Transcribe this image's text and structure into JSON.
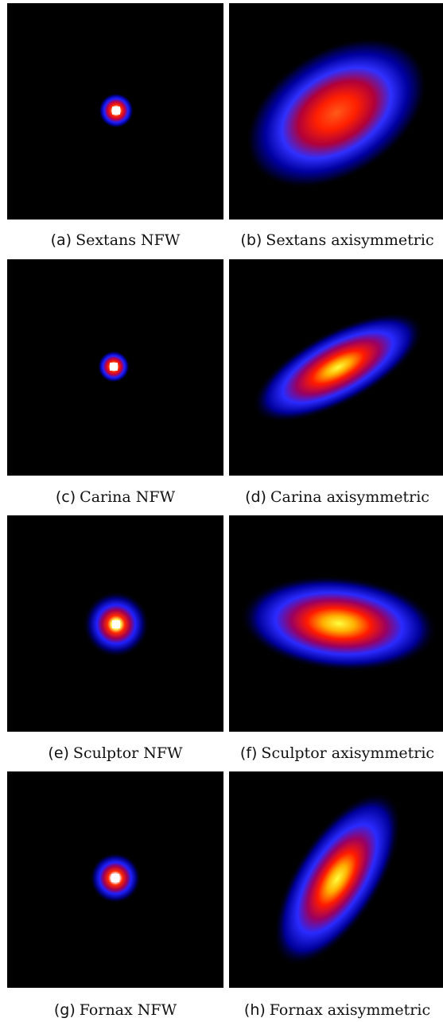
{
  "figures": [
    {
      "tag": "(a)",
      "label": "Sextans NFW",
      "blob": {
        "shape": "round",
        "size": "small",
        "rotation_deg": 0,
        "aspect": 1.0,
        "peak_color": "#ffffff"
      }
    },
    {
      "tag": "(b)",
      "label": "Sextans axisymmetric",
      "blob": {
        "shape": "elliptical",
        "size": "large",
        "rotation_deg": -32,
        "aspect": 1.7,
        "peak_color": "#ff5a1a"
      }
    },
    {
      "tag": "(c)",
      "label": "Carina NFW",
      "blob": {
        "shape": "round",
        "size": "small",
        "rotation_deg": 0,
        "aspect": 1.0,
        "peak_color": "#ffffff"
      }
    },
    {
      "tag": "(d)",
      "label": "Carina axisymmetric",
      "blob": {
        "shape": "elliptical",
        "size": "medium",
        "rotation_deg": -28,
        "aspect": 2.6,
        "peak_color": "#ffff40"
      }
    },
    {
      "tag": "(e)",
      "label": "Sculptor NFW",
      "blob": {
        "shape": "round",
        "size": "small",
        "rotation_deg": 0,
        "aspect": 1.0,
        "peak_color": "#ffffff"
      }
    },
    {
      "tag": "(f)",
      "label": "Sculptor axisymmetric",
      "blob": {
        "shape": "elliptical",
        "size": "medium",
        "rotation_deg": 5,
        "aspect": 2.0,
        "peak_color": "#ffff40"
      }
    },
    {
      "tag": "(g)",
      "label": "Fornax NFW",
      "blob": {
        "shape": "round",
        "size": "small",
        "rotation_deg": 0,
        "aspect": 1.0,
        "peak_color": "#ffffff"
      }
    },
    {
      "tag": "(h)",
      "label": "Fornax axisymmetric",
      "blob": {
        "shape": "elliptical",
        "size": "medium",
        "rotation_deg": -58,
        "aspect": 2.3,
        "peak_color": "#ffff40"
      }
    }
  ],
  "colormap": [
    "#000000",
    "#0000ff",
    "#ff0000",
    "#ffff00",
    "#ffffff"
  ]
}
